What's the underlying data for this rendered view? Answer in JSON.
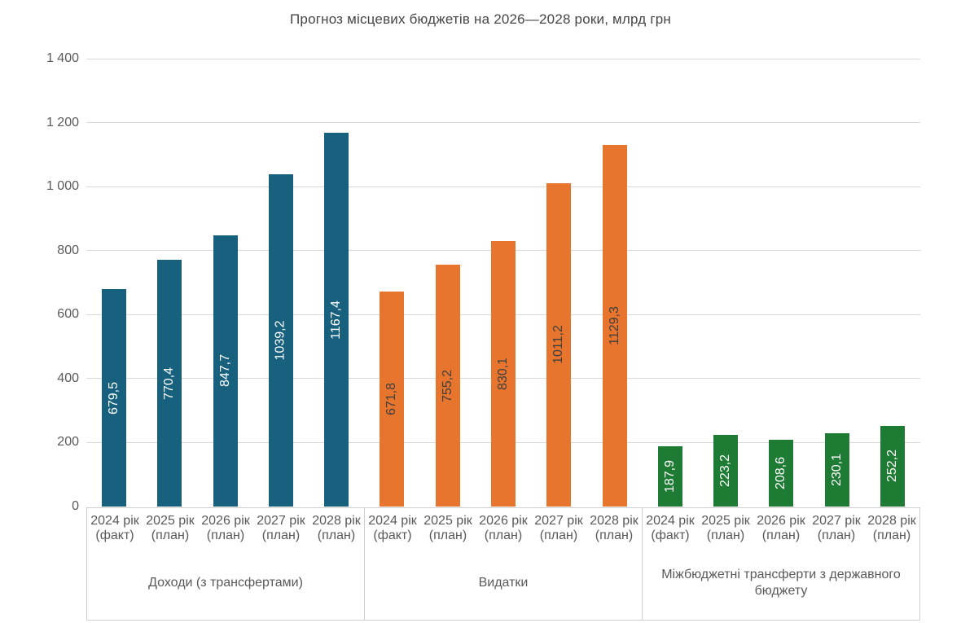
{
  "chart_data": {
    "type": "bar",
    "title": "Прогноз місцевих бюджетів на 2026—2028 роки, млрд грн",
    "xlabel": "",
    "ylabel": "",
    "ylim": [
      0,
      1400
    ],
    "ytick_step": 200,
    "ytick_labels": [
      "0",
      "200",
      "400",
      "600",
      "800",
      "1 000",
      "1 200",
      "1 400"
    ],
    "grid": true,
    "legend_position": "none",
    "categories": [
      "2024 рік (факт)",
      "2025 рік (план)",
      "2026 рік (план)",
      "2027 рік (план)",
      "2028 рік (план)"
    ],
    "groups": [
      {
        "name": "Доходи (з трансфертами)",
        "color": "#17617F",
        "label_color": "#FFFFFF",
        "values": [
          679.5,
          770.4,
          847.7,
          1039.2,
          1167.4
        ],
        "labels": [
          "679,5",
          "770,4",
          "847,7",
          "1039,2",
          "1167,4"
        ]
      },
      {
        "name": "Видатки",
        "color": "#E8752E",
        "label_color": "#3F3F3F",
        "values": [
          671.8,
          755.2,
          830.1,
          1011.2,
          1129.3
        ],
        "labels": [
          "671,8",
          "755,2",
          "830,1",
          "1011,2",
          "1129,3"
        ]
      },
      {
        "name": "Міжбюджетні трансферти з державного бюджету",
        "color": "#1E7B34",
        "label_color": "#FFFFFF",
        "values": [
          187.9,
          223.2,
          208.6,
          230.1,
          252.2
        ],
        "labels": [
          "187,9",
          "223,2",
          "208,6",
          "230,1",
          "252,2"
        ]
      }
    ],
    "style_colors": {
      "gridline": "#D9D9D9",
      "axis_box_border": "#D0CECE",
      "tick_label": "#595959",
      "title": "#454545"
    }
  }
}
